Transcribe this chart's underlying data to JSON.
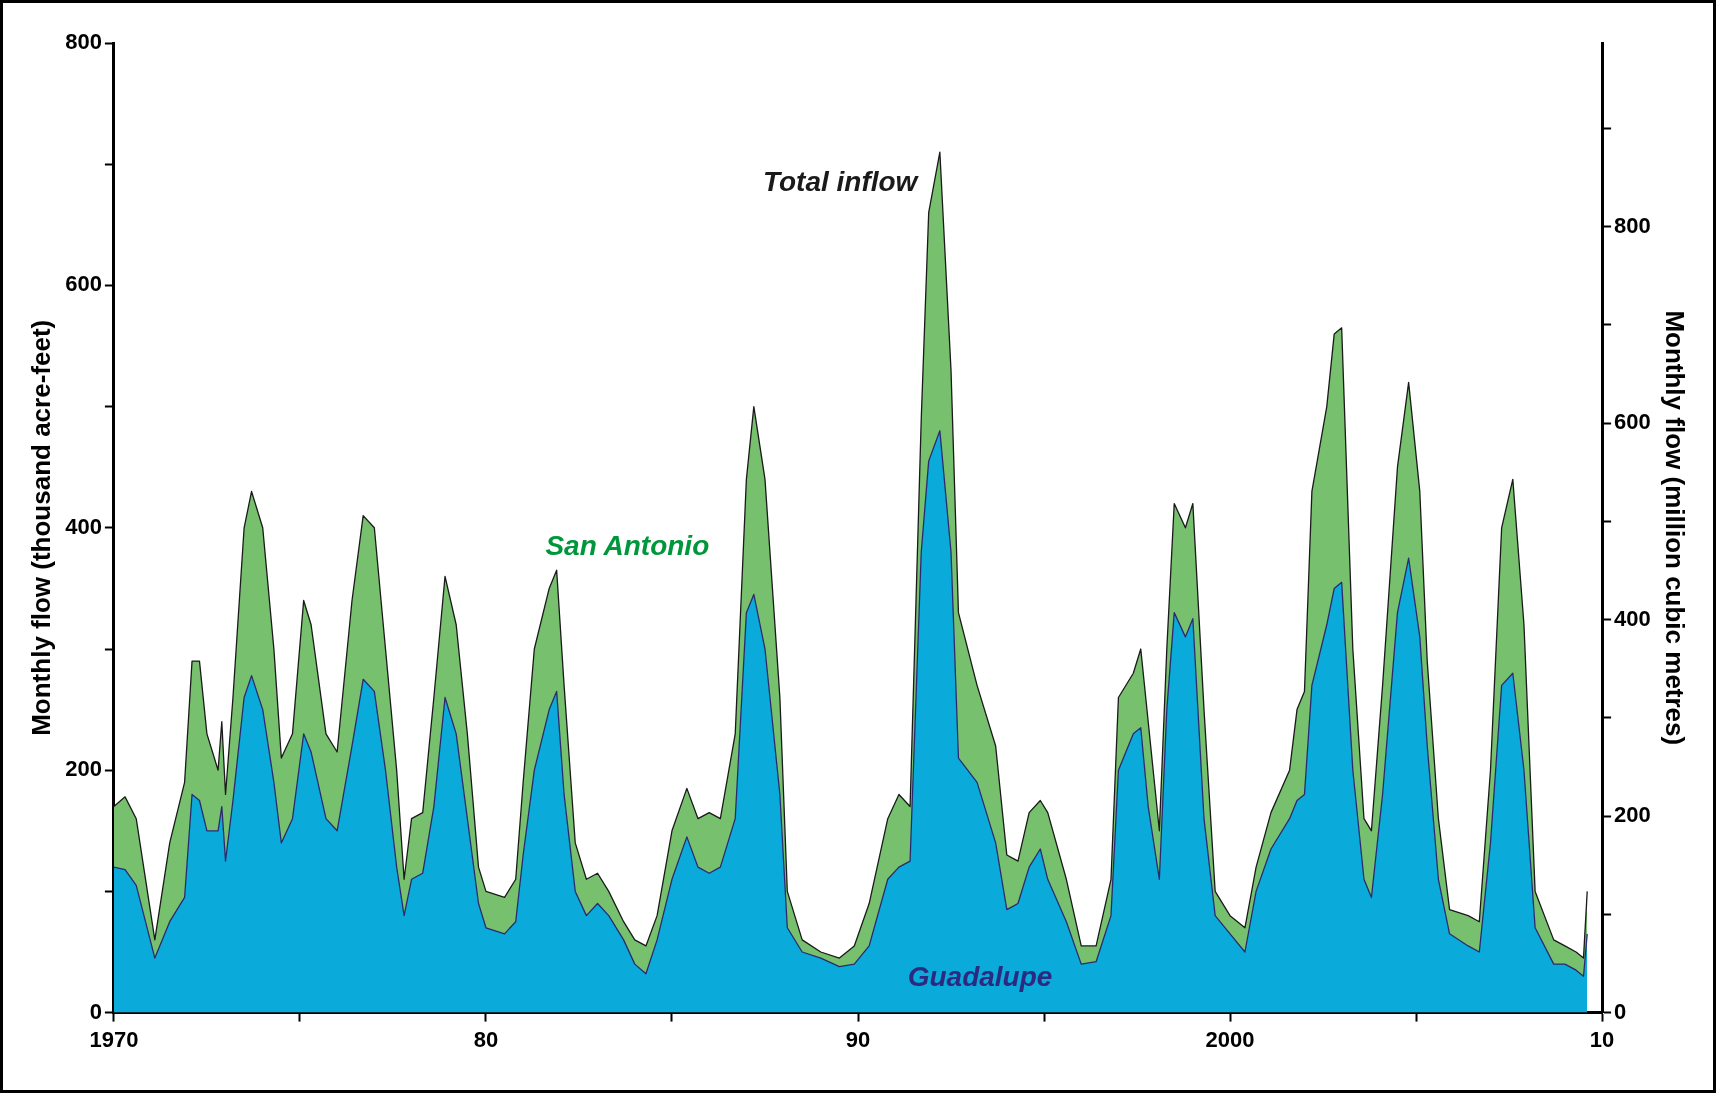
{
  "chart_data": {
    "type": "area",
    "ylabel": "Monthly flow (thousand acre-feet)",
    "y2label": "Monthly flow (million cubic metres)",
    "stacked": true,
    "legend": false,
    "grid": false,
    "marker": "none",
    "xlim": [
      1970,
      2010
    ],
    "xticks": [
      {
        "value": 1970,
        "label": "1970"
      },
      {
        "value": 1975,
        "label": null
      },
      {
        "value": 1980,
        "label": "80"
      },
      {
        "value": 1985,
        "label": null
      },
      {
        "value": 1990,
        "label": "90"
      },
      {
        "value": 1995,
        "label": null
      },
      {
        "value": 2000,
        "label": "2000"
      },
      {
        "value": 2005,
        "label": null
      },
      {
        "value": 2010,
        "label": "10"
      }
    ],
    "ylim": [
      0,
      800
    ],
    "yticks": [
      0,
      {
        "value": 100,
        "label": null
      },
      200,
      {
        "value": 300,
        "label": null
      },
      400,
      {
        "value": 500,
        "label": null
      },
      600,
      {
        "value": 700,
        "label": null
      },
      800
    ],
    "y2lim": [
      0,
      986.8
    ],
    "y2ticks": [
      0,
      {
        "value": 100,
        "label": null
      },
      200,
      {
        "value": 300,
        "label": null
      },
      400,
      {
        "value": 500,
        "label": null
      },
      600,
      {
        "value": 700,
        "label": null
      },
      800,
      {
        "value": 900,
        "label": null
      }
    ],
    "x": [
      1970.0,
      1970.3,
      1970.6,
      1971.1,
      1971.5,
      1971.9,
      1972.1,
      1972.3,
      1972.5,
      1972.8,
      1972.9,
      1973.0,
      1973.2,
      1973.5,
      1973.7,
      1974.0,
      1974.3,
      1974.5,
      1974.8,
      1975.1,
      1975.3,
      1975.7,
      1976.0,
      1976.4,
      1976.7,
      1977.0,
      1977.3,
      1977.6,
      1977.8,
      1978.0,
      1978.3,
      1978.6,
      1978.9,
      1979.2,
      1979.5,
      1979.8,
      1980.0,
      1980.5,
      1980.8,
      1981.0,
      1981.3,
      1981.7,
      1981.9,
      1982.1,
      1982.4,
      1982.7,
      1983.0,
      1983.3,
      1983.7,
      1984.0,
      1984.3,
      1984.6,
      1985.0,
      1985.4,
      1985.7,
      1986.0,
      1986.3,
      1986.7,
      1987.0,
      1987.2,
      1987.5,
      1987.9,
      1988.1,
      1988.5,
      1989.0,
      1989.5,
      1989.9,
      1990.3,
      1990.8,
      1991.1,
      1991.4,
      1991.7,
      1991.9,
      1992.2,
      1992.5,
      1992.7,
      1993.2,
      1993.7,
      1994.0,
      1994.3,
      1994.6,
      1994.9,
      1995.1,
      1995.6,
      1996.0,
      1996.4,
      1996.8,
      1997.0,
      1997.4,
      1997.6,
      1997.8,
      1998.1,
      1998.3,
      1998.5,
      1998.8,
      1999.0,
      1999.3,
      1999.6,
      2000.0,
      2000.4,
      2000.7,
      2001.1,
      2001.6,
      2001.8,
      2002.0,
      2002.2,
      2002.6,
      2002.8,
      2003.0,
      2003.3,
      2003.6,
      2003.8,
      2004.1,
      2004.5,
      2004.8,
      2005.1,
      2005.3,
      2005.6,
      2005.9,
      2006.4,
      2006.7,
      2007.0,
      2007.3,
      2007.6,
      2007.9,
      2008.2,
      2008.7,
      2009.0,
      2009.3,
      2009.5,
      2009.6
    ],
    "series": [
      {
        "name": "Guadalupe",
        "color": "#0aabdb",
        "values": [
          120,
          118,
          105,
          45,
          75,
          95,
          180,
          175,
          150,
          150,
          170,
          125,
          175,
          260,
          278,
          250,
          190,
          140,
          160,
          230,
          215,
          160,
          150,
          220,
          275,
          265,
          200,
          120,
          80,
          110,
          115,
          170,
          260,
          230,
          160,
          90,
          70,
          65,
          75,
          130,
          200,
          250,
          265,
          180,
          100,
          80,
          90,
          80,
          60,
          40,
          32,
          60,
          110,
          145,
          120,
          115,
          120,
          160,
          330,
          345,
          300,
          180,
          70,
          50,
          45,
          38,
          40,
          55,
          110,
          120,
          125,
          380,
          455,
          480,
          380,
          210,
          190,
          140,
          85,
          90,
          120,
          135,
          110,
          75,
          40,
          42,
          80,
          200,
          230,
          235,
          170,
          110,
          250,
          330,
          310,
          325,
          160,
          80,
          65,
          50,
          100,
          135,
          160,
          175,
          180,
          270,
          320,
          350,
          355,
          200,
          110,
          95,
          180,
          330,
          375,
          310,
          220,
          110,
          65,
          55,
          50,
          140,
          270,
          280,
          200,
          70,
          40,
          40,
          35,
          30,
          65
        ]
      },
      {
        "name": "San Antonio",
        "color": "#77c06e",
        "values": [
          50,
          60,
          55,
          15,
          65,
          95,
          110,
          115,
          80,
          50,
          70,
          55,
          85,
          140,
          152,
          150,
          110,
          70,
          70,
          110,
          105,
          70,
          65,
          120,
          135,
          135,
          100,
          80,
          30,
          50,
          50,
          90,
          100,
          90,
          70,
          30,
          30,
          30,
          35,
          60,
          100,
          100,
          100,
          90,
          40,
          30,
          25,
          20,
          15,
          20,
          23,
          20,
          40,
          40,
          40,
          50,
          40,
          70,
          110,
          155,
          140,
          80,
          30,
          10,
          5,
          7,
          15,
          35,
          50,
          60,
          45,
          110,
          205,
          230,
          150,
          120,
          80,
          80,
          45,
          35,
          45,
          40,
          55,
          35,
          15,
          13,
          30,
          60,
          50,
          65,
          70,
          40,
          50,
          90,
          90,
          95,
          90,
          20,
          15,
          20,
          20,
          30,
          40,
          75,
          85,
          160,
          180,
          210,
          210,
          100,
          50,
          55,
          90,
          120,
          145,
          120,
          70,
          50,
          20,
          25,
          25,
          60,
          130,
          160,
          120,
          30,
          20,
          15,
          15,
          15,
          35
        ]
      }
    ],
    "annotations": [
      "Total inflow"
    ]
  }
}
